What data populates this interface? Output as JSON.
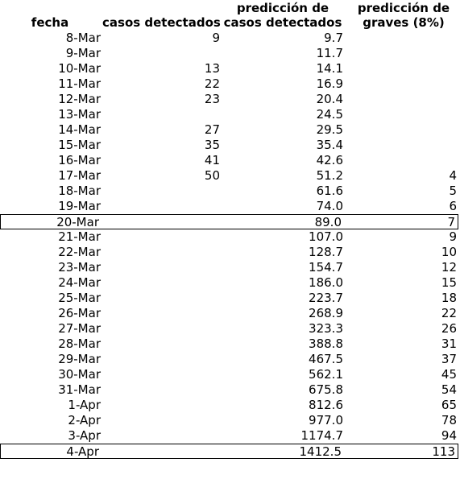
{
  "headers": {
    "fecha": "fecha",
    "casos": "casos detectados",
    "pred_line1": "predicción de",
    "pred_line2": "casos detectados",
    "graves_line1": "predicción de",
    "graves_line2": "graves (8%)"
  },
  "rows": [
    {
      "fecha": "8-Mar",
      "casos": "9",
      "pred": "9.7",
      "graves": "",
      "boxed": false
    },
    {
      "fecha": "9-Mar",
      "casos": "",
      "pred": "11.7",
      "graves": "",
      "boxed": false
    },
    {
      "fecha": "10-Mar",
      "casos": "13",
      "pred": "14.1",
      "graves": "",
      "boxed": false
    },
    {
      "fecha": "11-Mar",
      "casos": "22",
      "pred": "16.9",
      "graves": "",
      "boxed": false
    },
    {
      "fecha": "12-Mar",
      "casos": "23",
      "pred": "20.4",
      "graves": "",
      "boxed": false
    },
    {
      "fecha": "13-Mar",
      "casos": "",
      "pred": "24.5",
      "graves": "",
      "boxed": false
    },
    {
      "fecha": "14-Mar",
      "casos": "27",
      "pred": "29.5",
      "graves": "",
      "boxed": false
    },
    {
      "fecha": "15-Mar",
      "casos": "35",
      "pred": "35.4",
      "graves": "",
      "boxed": false
    },
    {
      "fecha": "16-Mar",
      "casos": "41",
      "pred": "42.6",
      "graves": "",
      "boxed": false
    },
    {
      "fecha": "17-Mar",
      "casos": "50",
      "pred": "51.2",
      "graves": "4",
      "boxed": false
    },
    {
      "fecha": "18-Mar",
      "casos": "",
      "pred": "61.6",
      "graves": "5",
      "boxed": false
    },
    {
      "fecha": "19-Mar",
      "casos": "",
      "pred": "74.0",
      "graves": "6",
      "boxed": false
    },
    {
      "fecha": "20-Mar",
      "casos": "",
      "pred": "89.0",
      "graves": "7",
      "boxed": true
    },
    {
      "fecha": "21-Mar",
      "casos": "",
      "pred": "107.0",
      "graves": "9",
      "boxed": false
    },
    {
      "fecha": "22-Mar",
      "casos": "",
      "pred": "128.7",
      "graves": "10",
      "boxed": false
    },
    {
      "fecha": "23-Mar",
      "casos": "",
      "pred": "154.7",
      "graves": "12",
      "boxed": false
    },
    {
      "fecha": "24-Mar",
      "casos": "",
      "pred": "186.0",
      "graves": "15",
      "boxed": false
    },
    {
      "fecha": "25-Mar",
      "casos": "",
      "pred": "223.7",
      "graves": "18",
      "boxed": false
    },
    {
      "fecha": "26-Mar",
      "casos": "",
      "pred": "268.9",
      "graves": "22",
      "boxed": false
    },
    {
      "fecha": "27-Mar",
      "casos": "",
      "pred": "323.3",
      "graves": "26",
      "boxed": false
    },
    {
      "fecha": "28-Mar",
      "casos": "",
      "pred": "388.8",
      "graves": "31",
      "boxed": false
    },
    {
      "fecha": "29-Mar",
      "casos": "",
      "pred": "467.5",
      "graves": "37",
      "boxed": false
    },
    {
      "fecha": "30-Mar",
      "casos": "",
      "pred": "562.1",
      "graves": "45",
      "boxed": false
    },
    {
      "fecha": "31-Mar",
      "casos": "",
      "pred": "675.8",
      "graves": "54",
      "boxed": false
    },
    {
      "fecha": "1-Apr",
      "casos": "",
      "pred": "812.6",
      "graves": "65",
      "boxed": false
    },
    {
      "fecha": "2-Apr",
      "casos": "",
      "pred": "977.0",
      "graves": "78",
      "boxed": false
    },
    {
      "fecha": "3-Apr",
      "casos": "",
      "pred": "1174.7",
      "graves": "94",
      "boxed": false
    },
    {
      "fecha": "4-Apr",
      "casos": "",
      "pred": "1412.5",
      "graves": "113",
      "boxed": true
    }
  ]
}
